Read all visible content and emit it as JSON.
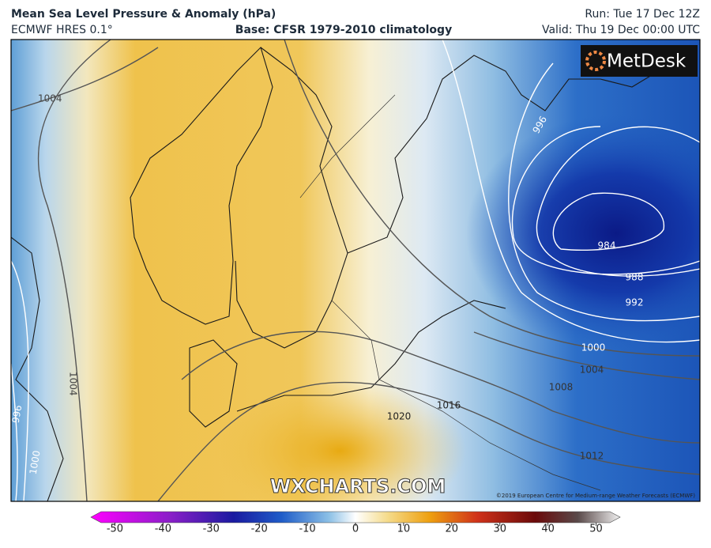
{
  "header": {
    "title": "Mean Sea Level Pressure & Anomaly (hPa)",
    "model": "ECMWF HRES 0.1°",
    "base": "Base: CFSR 1979-2010 climatology",
    "run": "Run: Tue 17 Dec 12Z",
    "valid": "Valid: Thu 19 Dec 00:00 UTC"
  },
  "map": {
    "logo": "MetDesk",
    "watermark": "WXCHARTS.COM",
    "copyright": "©2019 European Centre for Medium-range Weather Forecasts (ECMWF)",
    "contour_labels": [
      "1004",
      "1004",
      "996",
      "1000",
      "996",
      "984",
      "988",
      "992",
      "1000",
      "1004",
      "1008",
      "1012",
      "1016",
      "1020"
    ]
  },
  "colorbar": {
    "lim": [
      -55,
      55
    ],
    "ticks": [
      -50,
      -40,
      -30,
      -20,
      -10,
      0,
      10,
      20,
      30,
      40,
      50
    ]
  }
}
